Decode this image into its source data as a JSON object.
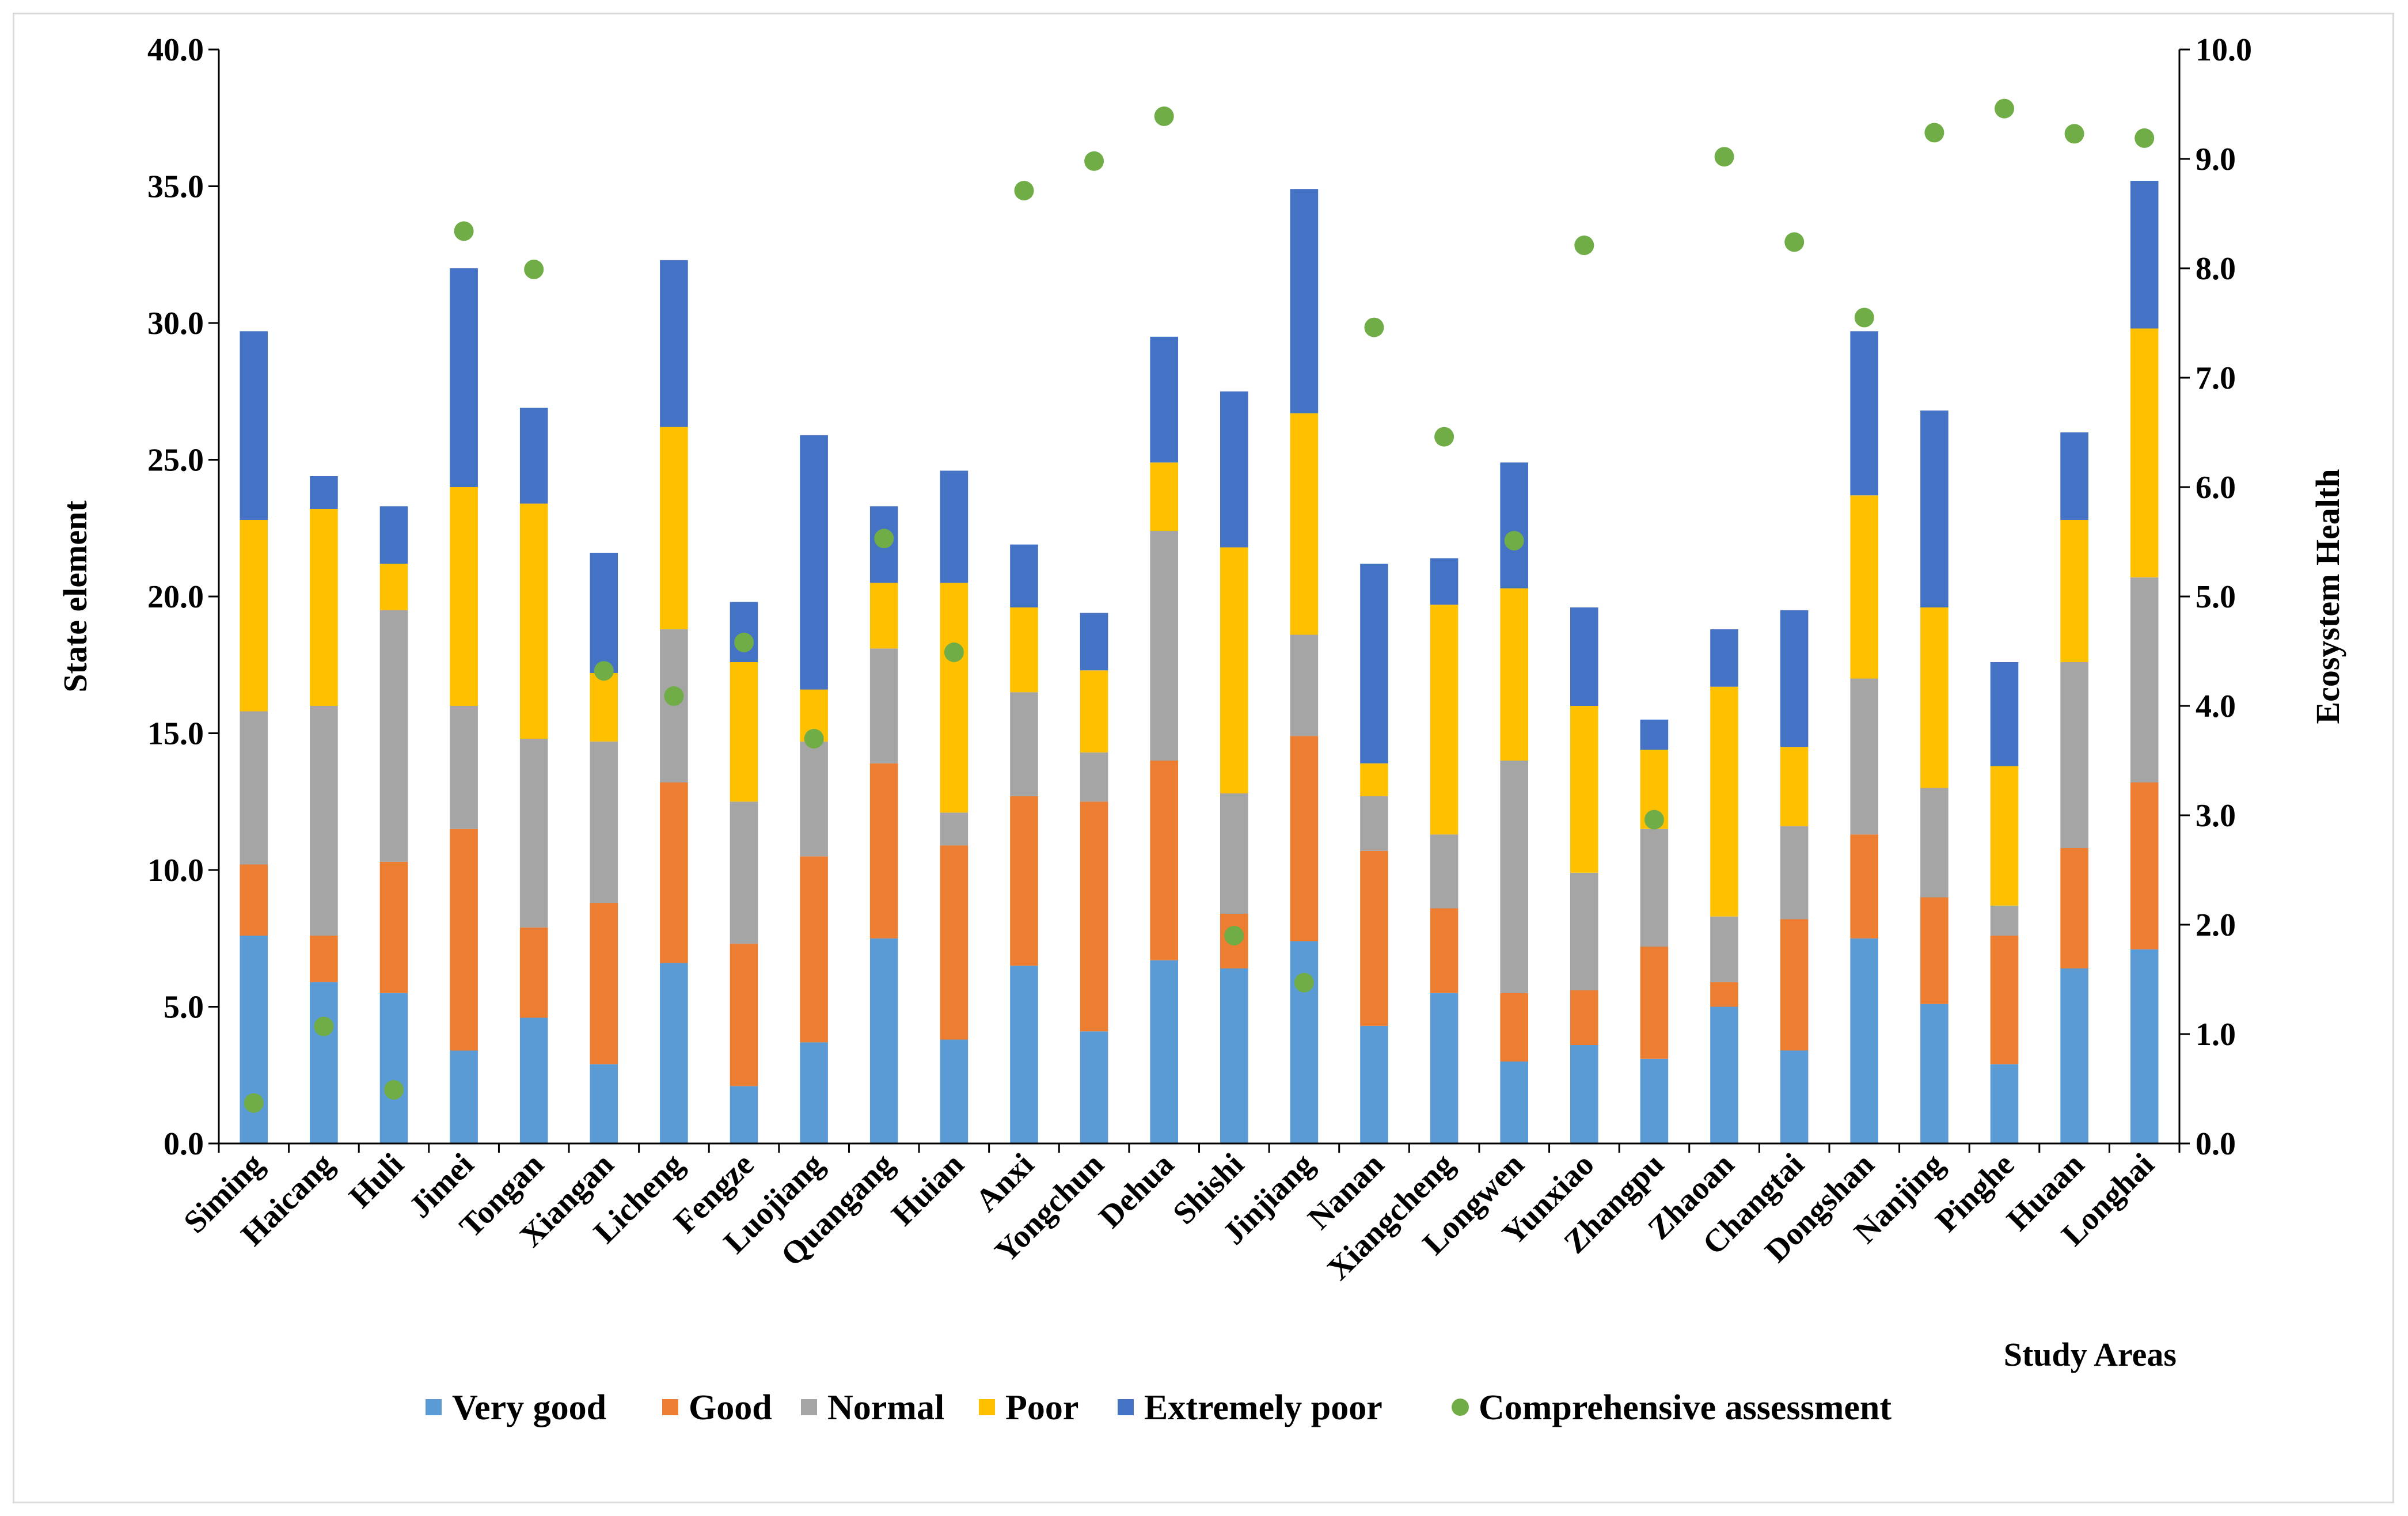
{
  "chart_data": {
    "type": "bar",
    "stacked": true,
    "title": "",
    "xlabel": "Study Areas",
    "ylabel": "State element",
    "y2label": "Ecosystem Health",
    "ylim": [
      0,
      40
    ],
    "y2lim": [
      0,
      10
    ],
    "yticks": [
      "0.0",
      "5.0",
      "10.0",
      "15.0",
      "20.0",
      "25.0",
      "30.0",
      "35.0",
      "40.0"
    ],
    "y2ticks": [
      "0.0",
      "1.0",
      "2.0",
      "3.0",
      "4.0",
      "5.0",
      "6.0",
      "7.0",
      "8.0",
      "9.0",
      "10.0"
    ],
    "categories": [
      "Siming",
      "Haicang",
      "Huli",
      "Jimei",
      "Tongan",
      "Xiangan",
      "Licheng",
      "Fengze",
      "Luojiang",
      "Quangang",
      "Huian",
      "Anxi",
      "Yongchun",
      "Dehua",
      "Shishi",
      "Jinjiang",
      "Nanan",
      "Xiangcheng",
      "Longwen",
      "Yunxiao",
      "Zhangpu",
      "Zhaoan",
      "Changtai",
      "Dongshan",
      "Nanjing",
      "Pinghe",
      "Huaan",
      "Longhai"
    ],
    "series": [
      {
        "name": "Very good",
        "color": "#5b9bd5",
        "values": [
          7.6,
          5.9,
          5.5,
          3.4,
          4.6,
          2.9,
          6.6,
          2.1,
          3.7,
          7.5,
          3.8,
          6.5,
          4.1,
          6.7,
          6.4,
          7.4,
          4.3,
          5.5,
          3.0,
          3.6,
          3.1,
          5.0,
          3.4,
          7.5,
          5.1,
          2.9,
          6.4,
          7.1
        ]
      },
      {
        "name": "Good",
        "color": "#ed7d31",
        "values": [
          2.6,
          1.7,
          4.8,
          8.1,
          3.3,
          5.9,
          6.6,
          5.2,
          6.8,
          6.4,
          7.1,
          6.2,
          8.4,
          7.3,
          2.0,
          7.5,
          6.4,
          3.1,
          2.5,
          2.0,
          4.1,
          0.9,
          4.8,
          3.8,
          3.9,
          4.7,
          4.4,
          6.1
        ]
      },
      {
        "name": "Normal",
        "color": "#a5a5a5",
        "values": [
          5.6,
          8.4,
          9.2,
          4.5,
          6.9,
          5.9,
          5.6,
          5.2,
          4.2,
          4.2,
          1.2,
          3.8,
          1.8,
          8.4,
          4.4,
          3.7,
          2.0,
          2.7,
          8.5,
          4.3,
          4.3,
          2.4,
          3.4,
          5.7,
          4.0,
          1.1,
          6.8,
          7.5
        ]
      },
      {
        "name": "Poor",
        "color": "#ffc000",
        "values": [
          7.0,
          7.2,
          1.7,
          8.0,
          8.6,
          2.5,
          7.4,
          5.1,
          1.9,
          2.4,
          8.4,
          3.1,
          3.0,
          2.5,
          9.0,
          8.1,
          1.2,
          8.4,
          6.3,
          6.1,
          2.9,
          8.4,
          2.9,
          6.7,
          6.6,
          5.1,
          5.2,
          9.1
        ]
      },
      {
        "name": "Extremely poor",
        "color": "#4472c4",
        "values": [
          6.9,
          1.2,
          2.1,
          8.0,
          3.5,
          4.4,
          6.1,
          2.2,
          9.3,
          2.8,
          4.1,
          2.3,
          2.1,
          4.6,
          5.7,
          8.2,
          7.3,
          1.7,
          4.6,
          3.6,
          1.1,
          2.1,
          5.0,
          6.0,
          7.2,
          3.8,
          3.2,
          5.4
        ]
      }
    ],
    "comprehensive_assessment": {
      "name": "Comprehensive assessment",
      "color": "#70ad47",
      "axis": "right",
      "values": [
        0.37,
        1.07,
        0.49,
        8.34,
        7.99,
        4.32,
        4.09,
        4.58,
        3.7,
        5.53,
        4.49,
        8.71,
        8.98,
        9.39,
        1.9,
        1.47,
        7.46,
        6.46,
        5.51,
        8.21,
        2.96,
        9.02,
        8.24,
        7.55,
        9.24,
        9.46,
        9.23,
        9.19
      ]
    },
    "legend": {
      "position": "bottom",
      "items": [
        "Very good",
        "Good",
        "Normal",
        "Poor",
        "Extremely poor",
        "Comprehensive assessment"
      ]
    }
  }
}
